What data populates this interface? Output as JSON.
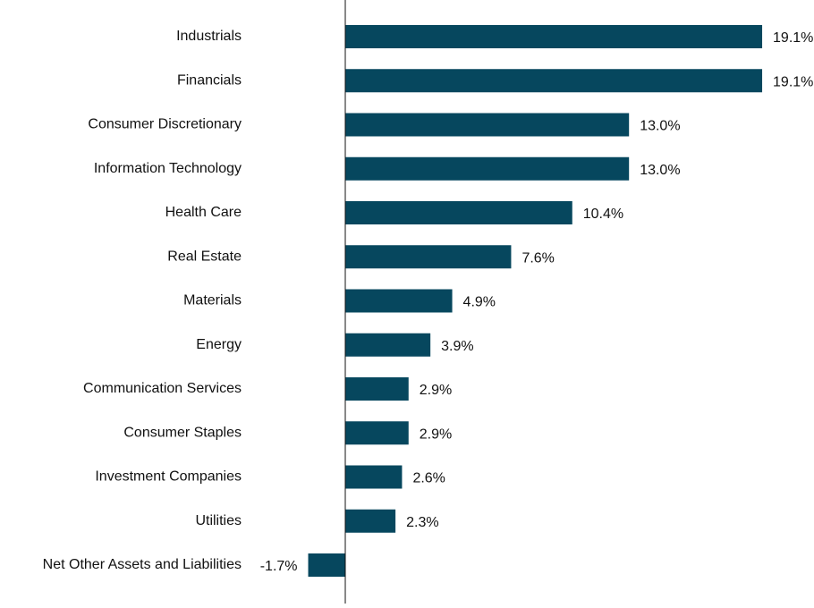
{
  "chart_data": {
    "type": "bar",
    "orientation": "horizontal",
    "categories": [
      "Industrials",
      "Financials",
      "Consumer Discretionary",
      "Information Technology",
      "Health Care",
      "Real Estate",
      "Materials",
      "Energy",
      "Communication Services",
      "Consumer Staples",
      "Investment Companies",
      "Utilities",
      "Net Other Assets and Liabilities"
    ],
    "values": [
      19.1,
      19.1,
      13.0,
      13.0,
      10.4,
      7.6,
      4.9,
      3.9,
      2.9,
      2.9,
      2.6,
      2.3,
      -1.7
    ],
    "data_labels": [
      "19.1%",
      "19.1%",
      "13.0%",
      "13.0%",
      "10.4%",
      "7.6%",
      "4.9%",
      "3.9%",
      "2.9%",
      "2.9%",
      "2.6%",
      "2.3%",
      "-1.7%"
    ],
    "value_unit": "%",
    "title": "",
    "xlabel": "",
    "ylabel": "",
    "xlim": [
      -1.7,
      19.1
    ],
    "grid": false,
    "legend": "none",
    "bar_color": "#06475E"
  }
}
